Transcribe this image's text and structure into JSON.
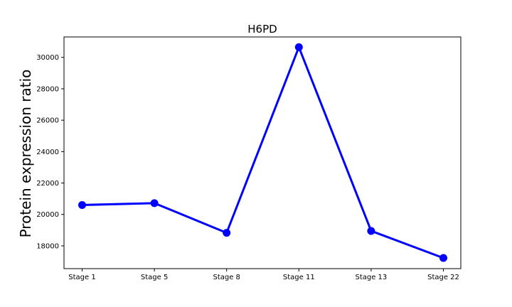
{
  "chart_data": {
    "type": "line",
    "title": "H6PD",
    "xlabel": "",
    "ylabel": "Protein expression ratio",
    "categories": [
      "Stage 1",
      "Stage 5",
      "Stage 8",
      "Stage 11",
      "Stage 13",
      "Stage 22"
    ],
    "series": [
      {
        "name": "",
        "values": [
          20600,
          20720,
          18830,
          30650,
          18950,
          17230
        ]
      }
    ],
    "yticks": [
      "18000",
      "20000",
      "22000",
      "24000",
      "26000",
      "28000",
      "30000"
    ],
    "ylim": [
      16550,
      31300
    ],
    "grid": false,
    "legend": "none",
    "colors": {
      "line": "#0000ff",
      "marker": "#0000ff",
      "axes": "#000000"
    }
  }
}
